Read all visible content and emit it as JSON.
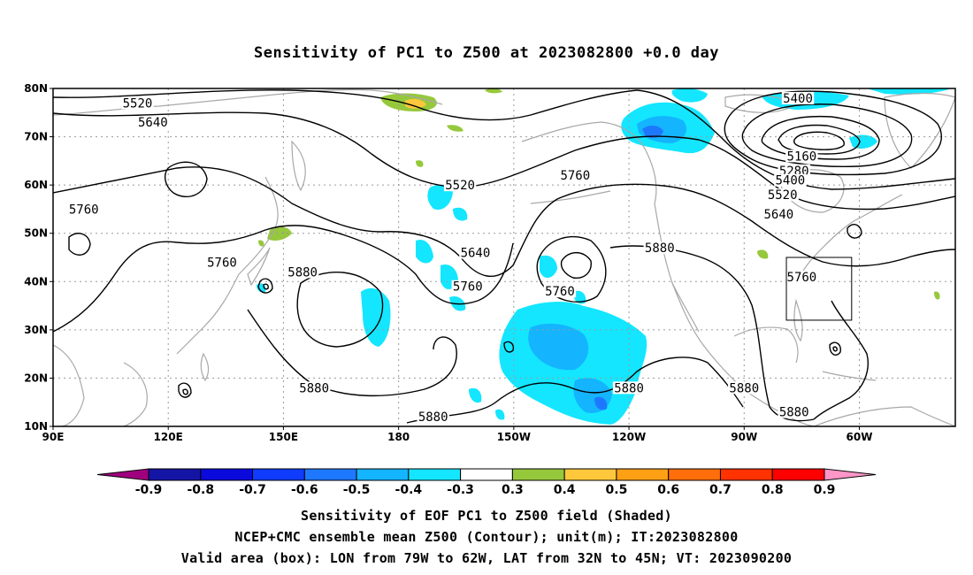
{
  "title": "Sensitivity of PC1 to Z500 at 2023082800 +0.0 day",
  "captions": [
    "Sensitivity of EOF PC1 to Z500 field (Shaded)",
    "NCEP+CMC ensemble mean Z500 (Contour); unit(m); IT:2023082800",
    "Valid area (box): LON from 79W to 62W, LAT from 32N to 45N; VT: 2023090200"
  ],
  "map": {
    "lon_labels": [
      "90E",
      "120E",
      "150E",
      "180",
      "150W",
      "120W",
      "90W",
      "60W"
    ],
    "lat_labels": [
      "80N",
      "70N",
      "60N",
      "50N",
      "40N",
      "30N",
      "20N",
      "10N"
    ],
    "lon_range": [
      90,
      325
    ],
    "lat_range": [
      10,
      80
    ],
    "valid_box": {
      "lon": [
        -79,
        -62
      ],
      "lat": [
        32,
        45
      ]
    }
  },
  "contour_labels": [
    {
      "text": "5520",
      "lon": 112,
      "lat": 77
    },
    {
      "text": "5640",
      "lon": 116,
      "lat": 73
    },
    {
      "text": "5760",
      "lon": 98,
      "lat": 55
    },
    {
      "text": "5760",
      "lon": 134,
      "lat": 44
    },
    {
      "text": "5880",
      "lon": 155,
      "lat": 42
    },
    {
      "text": "5880",
      "lon": 158,
      "lat": 18
    },
    {
      "text": "5880",
      "lon": 189,
      "lat": 12
    },
    {
      "text": "5520",
      "lon": 196,
      "lat": 60
    },
    {
      "text": "5640",
      "lon": 200,
      "lat": 46
    },
    {
      "text": "5760",
      "lon": 198,
      "lat": 39
    },
    {
      "text": "5760",
      "lon": 222,
      "lat": 38
    },
    {
      "text": "5760",
      "lon": 226,
      "lat": 62
    },
    {
      "text": "5880",
      "lon": 248,
      "lat": 47
    },
    {
      "text": "5880",
      "lon": 240,
      "lat": 18
    },
    {
      "text": "5880",
      "lon": 270,
      "lat": 18
    },
    {
      "text": "5880",
      "lon": 283,
      "lat": 13
    },
    {
      "text": "5400",
      "lon": 284,
      "lat": 78
    },
    {
      "text": "5160",
      "lon": 285,
      "lat": 66
    },
    {
      "text": "5280",
      "lon": 283,
      "lat": 63
    },
    {
      "text": "5400",
      "lon": 282,
      "lat": 61
    },
    {
      "text": "5520",
      "lon": 280,
      "lat": 58
    },
    {
      "text": "5640",
      "lon": 279,
      "lat": 54
    },
    {
      "text": "5760",
      "lon": 285,
      "lat": 41
    }
  ],
  "colorbar": {
    "labels": [
      "-0.9",
      "-0.8",
      "-0.7",
      "-0.6",
      "-0.5",
      "-0.4",
      "-0.3",
      "0.3",
      "0.4",
      "0.5",
      "0.6",
      "0.7",
      "0.8",
      "0.9"
    ],
    "colors": [
      "#a0007e",
      "#1414a5",
      "#0a0adc",
      "#0f3cff",
      "#1e78ff",
      "#14b4ff",
      "#14e6ff",
      "#ffffff",
      "#96c83c",
      "#ffc83c",
      "#ffa014",
      "#ff6e0a",
      "#ff3200",
      "#ff0000",
      "#ff96c8"
    ]
  }
}
